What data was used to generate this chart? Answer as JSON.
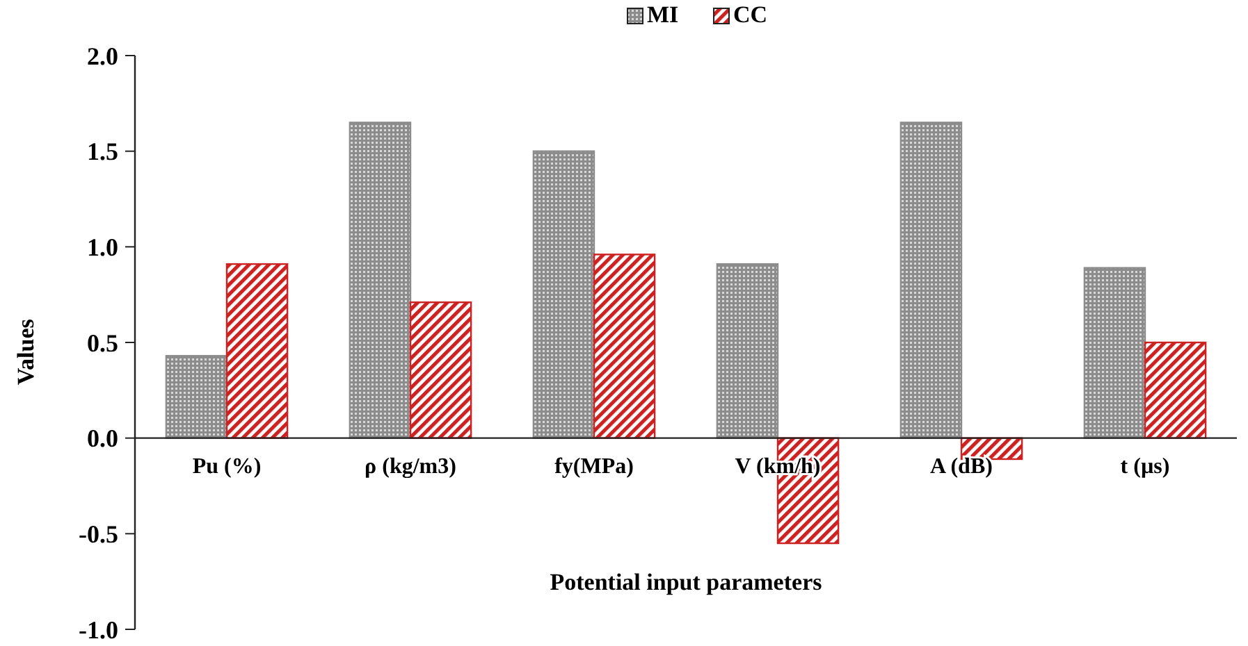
{
  "chart_data": {
    "type": "bar",
    "xlabel": "Potential input parameters",
    "ylabel": "Values",
    "categories": [
      "Pu (%)",
      "ρ (kg/m3)",
      "fy(MPa)",
      "V (km/h)",
      "A (dB)",
      "t (µs)"
    ],
    "series": [
      {
        "name": "MI",
        "color": "#8c8c8c",
        "values": [
          0.43,
          1.65,
          1.5,
          0.91,
          1.65,
          0.89
        ]
      },
      {
        "name": "CC",
        "color": "#cc2222",
        "values": [
          0.91,
          0.71,
          0.96,
          -0.55,
          -0.11,
          0.5
        ]
      }
    ],
    "ylim": [
      -1,
      2
    ],
    "yticks": [
      {
        "value": -1,
        "label": "-1.0"
      },
      {
        "value": -0.5,
        "label": "-0.5"
      },
      {
        "value": 0,
        "label": "0.0"
      },
      {
        "value": 0.5,
        "label": "0.5"
      },
      {
        "value": 1,
        "label": "1.0"
      },
      {
        "value": 1.5,
        "label": "1.5"
      },
      {
        "value": 2,
        "label": "2.0"
      }
    ],
    "grid": false,
    "legend": "top"
  }
}
